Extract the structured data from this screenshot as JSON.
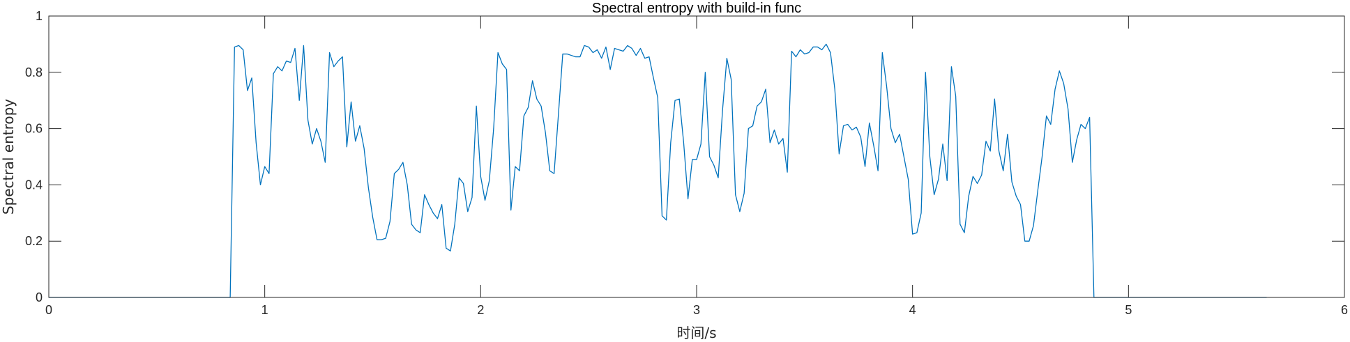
{
  "chart_data": {
    "type": "line",
    "title": "Spectral entropy with build-in func",
    "xlabel": "时间/s",
    "ylabel": "Spectral entropy",
    "xlim": [
      0,
      6
    ],
    "ylim": [
      0,
      1
    ],
    "xticks": [
      0,
      1,
      2,
      3,
      4,
      5,
      6
    ],
    "yticks": [
      0,
      0.2,
      0.4,
      0.6,
      0.8,
      1
    ],
    "xtick_labels": [
      "0",
      "1",
      "2",
      "3",
      "4",
      "5",
      "6"
    ],
    "ytick_labels": [
      "0",
      "0.2",
      "0.4",
      "0.6",
      "0.8",
      "1"
    ],
    "grid": false,
    "series_color": "#0072BD",
    "series": [
      {
        "x": [
          0,
          0.84,
          0.86,
          0.88,
          0.9,
          0.92,
          0.94,
          0.96,
          0.98,
          1.0,
          1.02,
          1.04,
          1.06,
          1.08,
          1.1,
          1.12,
          1.14,
          1.16,
          1.18,
          1.2,
          1.22,
          1.24,
          1.26,
          1.28,
          1.3,
          1.32,
          1.34,
          1.36,
          1.38,
          1.4,
          1.42,
          1.44,
          1.46,
          1.48,
          1.5,
          1.52,
          1.54,
          1.56,
          1.58,
          1.6,
          1.62,
          1.64,
          1.66,
          1.68,
          1.7,
          1.72,
          1.74,
          1.76,
          1.78,
          1.8,
          1.82,
          1.84,
          1.86,
          1.88,
          1.9,
          1.92,
          1.94,
          1.96,
          1.98,
          2.0,
          2.02,
          2.04,
          2.06,
          2.08,
          2.1,
          2.12,
          2.14,
          2.16,
          2.18,
          2.2,
          2.22,
          2.24,
          2.26,
          2.28,
          2.3,
          2.32,
          2.34,
          2.36,
          2.38,
          2.4,
          2.42,
          2.44,
          2.46,
          2.48,
          2.5,
          2.52,
          2.54,
          2.56,
          2.58,
          2.6,
          2.62,
          2.64,
          2.66,
          2.68,
          2.7,
          2.72,
          2.74,
          2.76,
          2.78,
          2.8,
          2.82,
          2.84,
          2.86,
          2.88,
          2.9,
          2.92,
          2.94,
          2.96,
          2.98,
          3.0,
          3.02,
          3.04,
          3.06,
          3.08,
          3.1,
          3.12,
          3.14,
          3.16,
          3.18,
          3.2,
          3.22,
          3.24,
          3.26,
          3.28,
          3.3,
          3.32,
          3.34,
          3.36,
          3.38,
          3.4,
          3.42,
          3.44,
          3.46,
          3.48,
          3.5,
          3.52,
          3.54,
          3.56,
          3.58,
          3.6,
          3.62,
          3.64,
          3.66,
          3.68,
          3.7,
          3.72,
          3.74,
          3.76,
          3.78,
          3.8,
          3.82,
          3.84,
          3.86,
          3.88,
          3.9,
          3.92,
          3.94,
          3.96,
          3.98,
          4.0,
          4.02,
          4.04,
          4.06,
          4.08,
          4.1,
          4.12,
          4.14,
          4.16,
          4.18,
          4.2,
          4.22,
          4.24,
          4.26,
          4.28,
          4.3,
          4.32,
          4.34,
          4.36,
          4.38,
          4.4,
          4.42,
          4.44,
          4.46,
          4.48,
          4.5,
          4.52,
          4.54,
          4.56,
          4.58,
          4.6,
          4.62,
          4.64,
          4.66,
          4.68,
          4.7,
          4.72,
          4.74,
          4.76,
          4.78,
          4.8,
          4.82,
          4.84,
          5.64
        ],
        "y": [
          0,
          0,
          0.89,
          0.895,
          0.88,
          0.735,
          0.78,
          0.55,
          0.4,
          0.465,
          0.44,
          0.795,
          0.82,
          0.805,
          0.84,
          0.835,
          0.885,
          0.7,
          0.895,
          0.63,
          0.545,
          0.6,
          0.555,
          0.48,
          0.87,
          0.82,
          0.84,
          0.855,
          0.535,
          0.695,
          0.555,
          0.61,
          0.53,
          0.39,
          0.285,
          0.205,
          0.205,
          0.21,
          0.27,
          0.44,
          0.455,
          0.48,
          0.4,
          0.26,
          0.24,
          0.23,
          0.365,
          0.33,
          0.3,
          0.28,
          0.33,
          0.175,
          0.165,
          0.26,
          0.425,
          0.405,
          0.305,
          0.355,
          0.68,
          0.43,
          0.345,
          0.415,
          0.6,
          0.87,
          0.83,
          0.81,
          0.31,
          0.465,
          0.45,
          0.645,
          0.675,
          0.77,
          0.705,
          0.68,
          0.585,
          0.45,
          0.44,
          0.65,
          0.865,
          0.865,
          0.86,
          0.855,
          0.855,
          0.895,
          0.89,
          0.87,
          0.88,
          0.85,
          0.89,
          0.81,
          0.885,
          0.88,
          0.875,
          0.895,
          0.885,
          0.86,
          0.885,
          0.85,
          0.855,
          0.78,
          0.71,
          0.29,
          0.275,
          0.55,
          0.7,
          0.705,
          0.55,
          0.35,
          0.49,
          0.49,
          0.545,
          0.8,
          0.5,
          0.47,
          0.425,
          0.665,
          0.85,
          0.775,
          0.365,
          0.305,
          0.37,
          0.6,
          0.61,
          0.68,
          0.695,
          0.74,
          0.55,
          0.595,
          0.545,
          0.565,
          0.445,
          0.875,
          0.855,
          0.88,
          0.865,
          0.87,
          0.89,
          0.89,
          0.88,
          0.9,
          0.87,
          0.74,
          0.51,
          0.61,
          0.615,
          0.595,
          0.605,
          0.57,
          0.465,
          0.62,
          0.54,
          0.45,
          0.87,
          0.75,
          0.6,
          0.55,
          0.58,
          0.5,
          0.42,
          0.225,
          0.23,
          0.3,
          0.8,
          0.5,
          0.365,
          0.42,
          0.545,
          0.415,
          0.82,
          0.715,
          0.26,
          0.23,
          0.36,
          0.43,
          0.405,
          0.435,
          0.555,
          0.52,
          0.705,
          0.52,
          0.45,
          0.58,
          0.41,
          0.36,
          0.33,
          0.2,
          0.2,
          0.255,
          0.38,
          0.5,
          0.645,
          0.615,
          0.74,
          0.805,
          0.76,
          0.67,
          0.48,
          0.56,
          0.615,
          0.6,
          0.64,
          0,
          0
        ]
      }
    ]
  }
}
